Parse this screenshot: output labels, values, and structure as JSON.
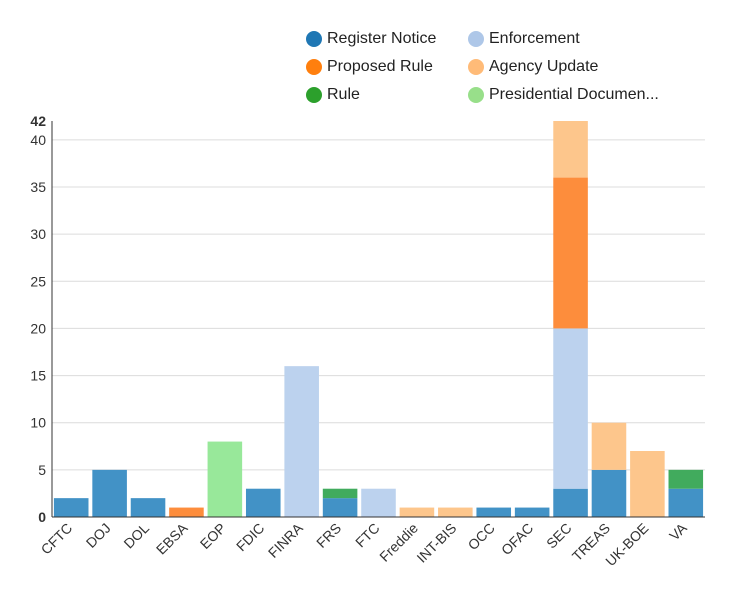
{
  "chart_data": {
    "type": "bar",
    "stacked": true,
    "categories": [
      "CFTC",
      "DOJ",
      "DOL",
      "EBSA",
      "EOP",
      "FDIC",
      "FINRA",
      "FRS",
      "FTC",
      "Freddie",
      "INT-BIS",
      "OCC",
      "OFAC",
      "SEC",
      "TREAS",
      "UK-BOE",
      "VA"
    ],
    "series": [
      {
        "name": "Register Notice",
        "color": "#4292c6",
        "values": [
          2,
          5,
          2,
          0,
          0,
          3,
          0,
          2,
          0,
          0,
          0,
          1,
          1,
          3,
          5,
          0,
          3
        ]
      },
      {
        "name": "Enforcement",
        "color": "#bcd2ee",
        "values": [
          0,
          0,
          0,
          0,
          0,
          0,
          16,
          0,
          3,
          0,
          0,
          0,
          0,
          17,
          0,
          0,
          0
        ]
      },
      {
        "name": "Proposed Rule",
        "color": "#fd8d3c",
        "values": [
          0,
          0,
          0,
          1,
          0,
          0,
          0,
          0,
          0,
          0,
          0,
          0,
          0,
          16,
          0,
          0,
          0
        ]
      },
      {
        "name": "Agency Update",
        "color": "#fdc68c",
        "values": [
          0,
          0,
          0,
          0,
          0,
          0,
          0,
          0,
          0,
          1,
          1,
          0,
          0,
          6,
          5,
          7,
          0
        ]
      },
      {
        "name": "Rule",
        "color": "#41ab5d",
        "values": [
          0,
          0,
          0,
          0,
          0,
          0,
          0,
          1,
          0,
          0,
          0,
          0,
          0,
          0,
          0,
          0,
          2
        ]
      },
      {
        "name": "Presidential Documen...",
        "color": "#98e89a",
        "values": [
          0,
          0,
          0,
          0,
          8,
          0,
          0,
          0,
          0,
          0,
          0,
          0,
          0,
          0,
          0,
          0,
          0
        ]
      }
    ],
    "legend_marker_colors": [
      "#1f77b4",
      "#aec7e8",
      "#ff7f0e",
      "#ffbb78",
      "#2ca02c",
      "#98df8a"
    ],
    "yticks": [
      0,
      5,
      10,
      15,
      20,
      25,
      30,
      35,
      40,
      42
    ],
    "ylim": [
      0,
      42
    ],
    "grid": true,
    "legend_position": "top"
  }
}
